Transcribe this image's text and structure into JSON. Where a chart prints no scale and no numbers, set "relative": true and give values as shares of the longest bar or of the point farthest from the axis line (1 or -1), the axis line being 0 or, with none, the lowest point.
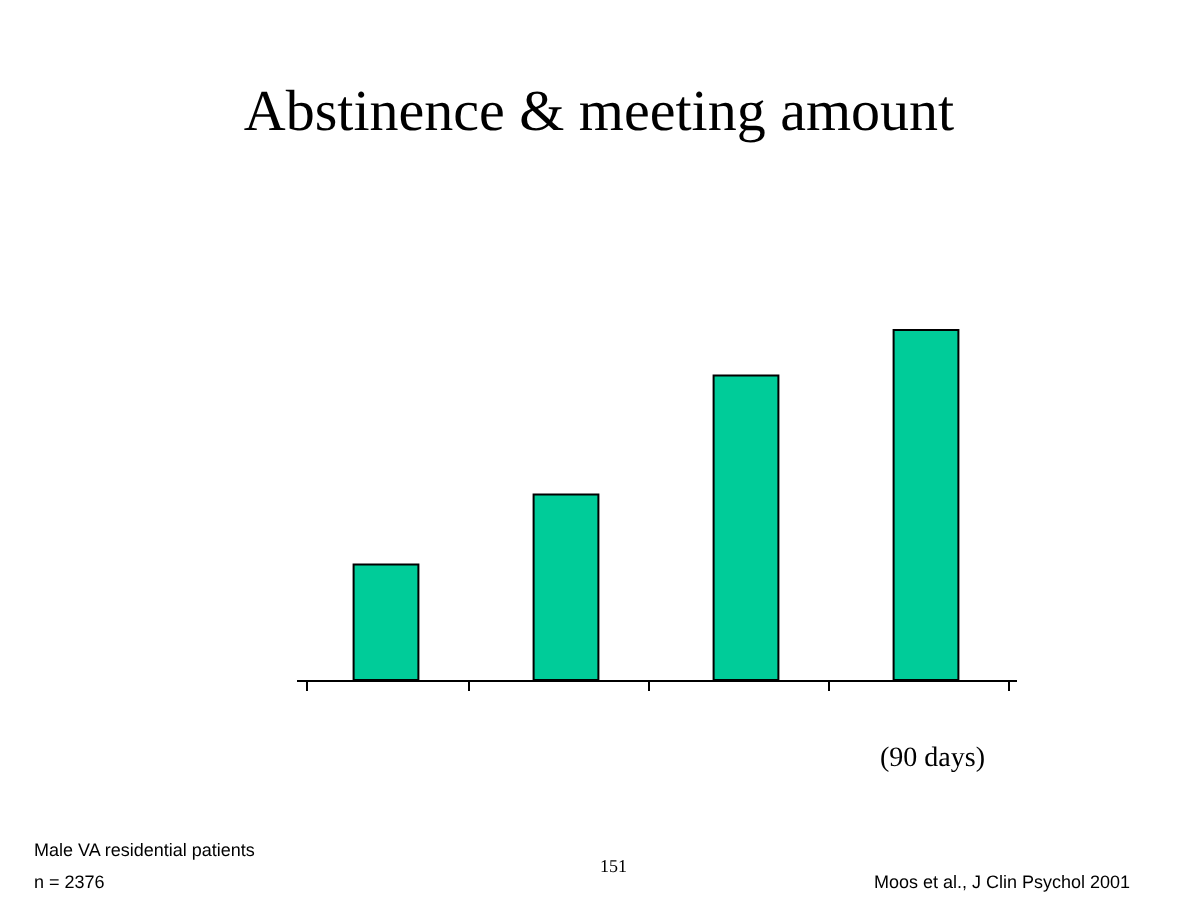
{
  "chart_data": {
    "type": "bar",
    "title": "Abstinence & meeting amount",
    "categories": [
      null,
      null,
      null,
      null
    ],
    "values": [
      0.33,
      0.53,
      0.87,
      1
    ],
    "color": "#00cc99",
    "relative": true,
    "annotations": [
      "(90 days)",
      "Male VA residential patients",
      "n = 2376",
      "151",
      "Moos et al., J Clin Psychol 2001"
    ]
  }
}
